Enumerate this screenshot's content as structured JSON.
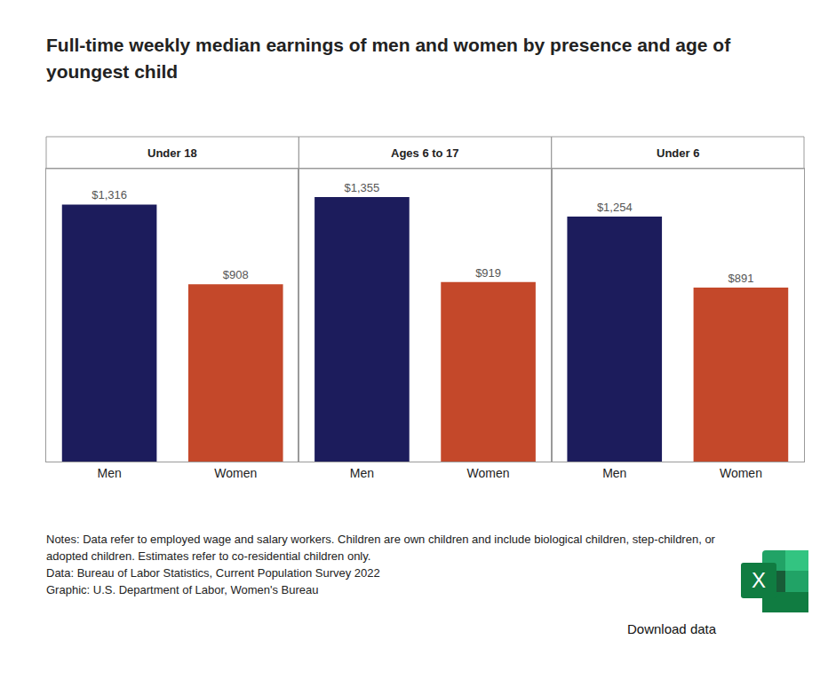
{
  "chart_data": {
    "type": "bar",
    "title": "Full-time weekly median earnings of men and women by presence and age of youngest child",
    "facets": [
      {
        "title": "Under 18",
        "categories": [
          "Men",
          "Women"
        ],
        "values": [
          1316,
          908
        ],
        "value_labels": [
          "$1,316",
          "$908"
        ]
      },
      {
        "title": "Ages 6 to 17",
        "categories": [
          "Men",
          "Women"
        ],
        "values": [
          1355,
          919
        ],
        "value_labels": [
          "$1,355",
          "$919"
        ]
      },
      {
        "title": "Under 6",
        "categories": [
          "Men",
          "Women"
        ],
        "values": [
          1254,
          891
        ],
        "value_labels": [
          "$1,254",
          "$891"
        ]
      }
    ],
    "colors": [
      "#1c1c5c",
      "#c4482a"
    ],
    "ylim": [
      0,
      1500
    ],
    "grid": false,
    "data_labels": true,
    "tick_labels": "x",
    "notes": [
      "Notes: Data refer to employed wage and salary workers. Children are own children and include biological children, step-children, or adopted children. Estimates refer to co-residential children only.",
      "Data: Bureau of Labor Statistics, Current Population Survey 2022",
      "Graphic: U.S. Department of Labor, Women's Bureau"
    ],
    "download": {
      "label": "Download data",
      "icon": "X"
    }
  }
}
